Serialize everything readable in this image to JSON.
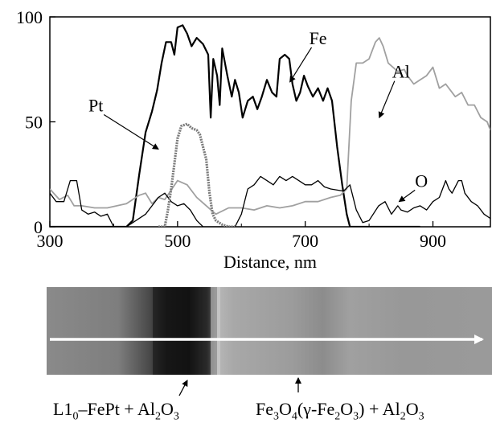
{
  "chart_data": {
    "type": "line",
    "xlabel": "Distance, nm",
    "ylabel": "",
    "xlim": [
      300,
      990
    ],
    "ylim": [
      0,
      100
    ],
    "x_ticks": [
      300,
      500,
      700,
      900
    ],
    "y_ticks": [
      0,
      50,
      100
    ],
    "grid": false,
    "series": [
      {
        "name": "Fe",
        "color": "#000000",
        "width": 2.2,
        "points": [
          [
            300,
            0
          ],
          [
            400,
            0
          ],
          [
            420,
            0
          ],
          [
            430,
            3
          ],
          [
            440,
            25
          ],
          [
            450,
            45
          ],
          [
            460,
            55
          ],
          [
            468,
            65
          ],
          [
            475,
            78
          ],
          [
            482,
            88
          ],
          [
            490,
            88
          ],
          [
            495,
            82
          ],
          [
            500,
            95
          ],
          [
            508,
            96
          ],
          [
            515,
            92
          ],
          [
            522,
            86
          ],
          [
            530,
            90
          ],
          [
            540,
            87
          ],
          [
            548,
            82
          ],
          [
            552,
            52
          ],
          [
            556,
            80
          ],
          [
            562,
            72
          ],
          [
            566,
            58
          ],
          [
            570,
            85
          ],
          [
            578,
            72
          ],
          [
            585,
            62
          ],
          [
            590,
            70
          ],
          [
            596,
            64
          ],
          [
            602,
            52
          ],
          [
            610,
            60
          ],
          [
            618,
            62
          ],
          [
            625,
            56
          ],
          [
            632,
            62
          ],
          [
            640,
            70
          ],
          [
            648,
            64
          ],
          [
            655,
            62
          ],
          [
            660,
            80
          ],
          [
            668,
            82
          ],
          [
            675,
            80
          ],
          [
            680,
            68
          ],
          [
            686,
            60
          ],
          [
            692,
            64
          ],
          [
            698,
            72
          ],
          [
            704,
            67
          ],
          [
            712,
            62
          ],
          [
            720,
            66
          ],
          [
            728,
            60
          ],
          [
            735,
            66
          ],
          [
            742,
            60
          ],
          [
            750,
            38
          ],
          [
            758,
            20
          ],
          [
            765,
            6
          ],
          [
            770,
            0
          ],
          [
            850,
            0
          ],
          [
            870,
            0
          ],
          [
            880,
            0
          ]
        ]
      },
      {
        "name": "Al",
        "color": "#a0a0a0",
        "width": 1.8,
        "points": [
          [
            300,
            18
          ],
          [
            315,
            13
          ],
          [
            328,
            15
          ],
          [
            338,
            10
          ],
          [
            350,
            10
          ],
          [
            370,
            9
          ],
          [
            390,
            9
          ],
          [
            420,
            11
          ],
          [
            440,
            15
          ],
          [
            450,
            16
          ],
          [
            460,
            11
          ],
          [
            470,
            14
          ],
          [
            480,
            13
          ],
          [
            500,
            22
          ],
          [
            515,
            20
          ],
          [
            530,
            14
          ],
          [
            545,
            10
          ],
          [
            560,
            6
          ],
          [
            580,
            9
          ],
          [
            600,
            9
          ],
          [
            620,
            8
          ],
          [
            640,
            10
          ],
          [
            660,
            9
          ],
          [
            680,
            10
          ],
          [
            700,
            12
          ],
          [
            720,
            12
          ],
          [
            740,
            14
          ],
          [
            755,
            15
          ],
          [
            765,
            18
          ],
          [
            772,
            60
          ],
          [
            780,
            78
          ],
          [
            790,
            78
          ],
          [
            800,
            80
          ],
          [
            810,
            88
          ],
          [
            816,
            90
          ],
          [
            822,
            86
          ],
          [
            830,
            78
          ],
          [
            845,
            74
          ],
          [
            855,
            75
          ],
          [
            860,
            72
          ],
          [
            870,
            68
          ],
          [
            880,
            70
          ],
          [
            890,
            72
          ],
          [
            900,
            76
          ],
          [
            910,
            66
          ],
          [
            920,
            68
          ],
          [
            935,
            62
          ],
          [
            945,
            64
          ],
          [
            955,
            58
          ],
          [
            965,
            58
          ],
          [
            975,
            52
          ],
          [
            985,
            50
          ],
          [
            990,
            46
          ]
        ]
      },
      {
        "name": "O",
        "color": "#000000",
        "width": 1.3,
        "points": [
          [
            300,
            16
          ],
          [
            310,
            12
          ],
          [
            322,
            12
          ],
          [
            332,
            22
          ],
          [
            342,
            22
          ],
          [
            350,
            8
          ],
          [
            360,
            6
          ],
          [
            370,
            7
          ],
          [
            380,
            5
          ],
          [
            390,
            6
          ],
          [
            400,
            0
          ],
          [
            420,
            0
          ],
          [
            440,
            4
          ],
          [
            450,
            6
          ],
          [
            460,
            10
          ],
          [
            470,
            14
          ],
          [
            480,
            16
          ],
          [
            490,
            12
          ],
          [
            500,
            10
          ],
          [
            510,
            11
          ],
          [
            520,
            8
          ],
          [
            530,
            3
          ],
          [
            540,
            0
          ],
          [
            560,
            0
          ],
          [
            580,
            0
          ],
          [
            590,
            0
          ],
          [
            600,
            6
          ],
          [
            610,
            18
          ],
          [
            620,
            20
          ],
          [
            630,
            24
          ],
          [
            640,
            22
          ],
          [
            650,
            20
          ],
          [
            660,
            24
          ],
          [
            670,
            22
          ],
          [
            680,
            24
          ],
          [
            690,
            22
          ],
          [
            700,
            20
          ],
          [
            710,
            20
          ],
          [
            720,
            22
          ],
          [
            730,
            19
          ],
          [
            740,
            18
          ],
          [
            760,
            17
          ],
          [
            770,
            20
          ],
          [
            780,
            8
          ],
          [
            790,
            2
          ],
          [
            800,
            3
          ],
          [
            815,
            10
          ],
          [
            825,
            12
          ],
          [
            835,
            6
          ],
          [
            845,
            10
          ],
          [
            850,
            8
          ],
          [
            860,
            7
          ],
          [
            870,
            9
          ],
          [
            880,
            10
          ],
          [
            890,
            8
          ],
          [
            900,
            12
          ],
          [
            910,
            14
          ],
          [
            920,
            22
          ],
          [
            925,
            18
          ],
          [
            930,
            16
          ],
          [
            940,
            22
          ],
          [
            945,
            22
          ],
          [
            950,
            16
          ],
          [
            960,
            12
          ],
          [
            970,
            10
          ],
          [
            980,
            6
          ],
          [
            990,
            4
          ]
        ]
      },
      {
        "name": "Pt",
        "color": "#7a7a7a",
        "width": 3.2,
        "dash": true,
        "points": [
          [
            470,
            0
          ],
          [
            480,
            0
          ],
          [
            485,
            8
          ],
          [
            490,
            18
          ],
          [
            495,
            30
          ],
          [
            500,
            42
          ],
          [
            506,
            48
          ],
          [
            515,
            49
          ],
          [
            522,
            47
          ],
          [
            530,
            46
          ],
          [
            535,
            44
          ],
          [
            540,
            38
          ],
          [
            545,
            32
          ],
          [
            550,
            16
          ],
          [
            555,
            6
          ],
          [
            560,
            3
          ],
          [
            570,
            1
          ],
          [
            580,
            0
          ],
          [
            590,
            0
          ]
        ]
      }
    ],
    "annotations": [
      {
        "text": "Fe",
        "x": 720,
        "y": 87,
        "arrow_to": [
          676,
          69
        ]
      },
      {
        "text": "Al",
        "x": 850,
        "y": 71,
        "arrow_to": [
          816,
          52
        ]
      },
      {
        "text": "Pt",
        "x": 372,
        "y": 55,
        "arrow_to": [
          470,
          37
        ]
      },
      {
        "text": "O",
        "x": 882,
        "y": 19,
        "arrow_to": [
          847,
          12
        ]
      }
    ]
  },
  "micrograph": {
    "caption_left_main": "L1",
    "caption_left_sub0": "0",
    "caption_left_mid": "–FePt + Al",
    "caption_left_sub2": "2",
    "caption_left_o": "O",
    "caption_left_sub3": "3",
    "caption_right_fe": "Fe",
    "caption_right_sub3": "3",
    "caption_right_o": "O",
    "caption_right_sub4": "4",
    "caption_right_mid": "(γ-Fe",
    "caption_right_sub2": "2",
    "caption_right_o2": "O",
    "caption_right_sub3b": "3",
    "caption_right_tail": ") + Al",
    "caption_right_sub2b": "2",
    "caption_right_o3": "O",
    "caption_right_sub3c": "3"
  }
}
